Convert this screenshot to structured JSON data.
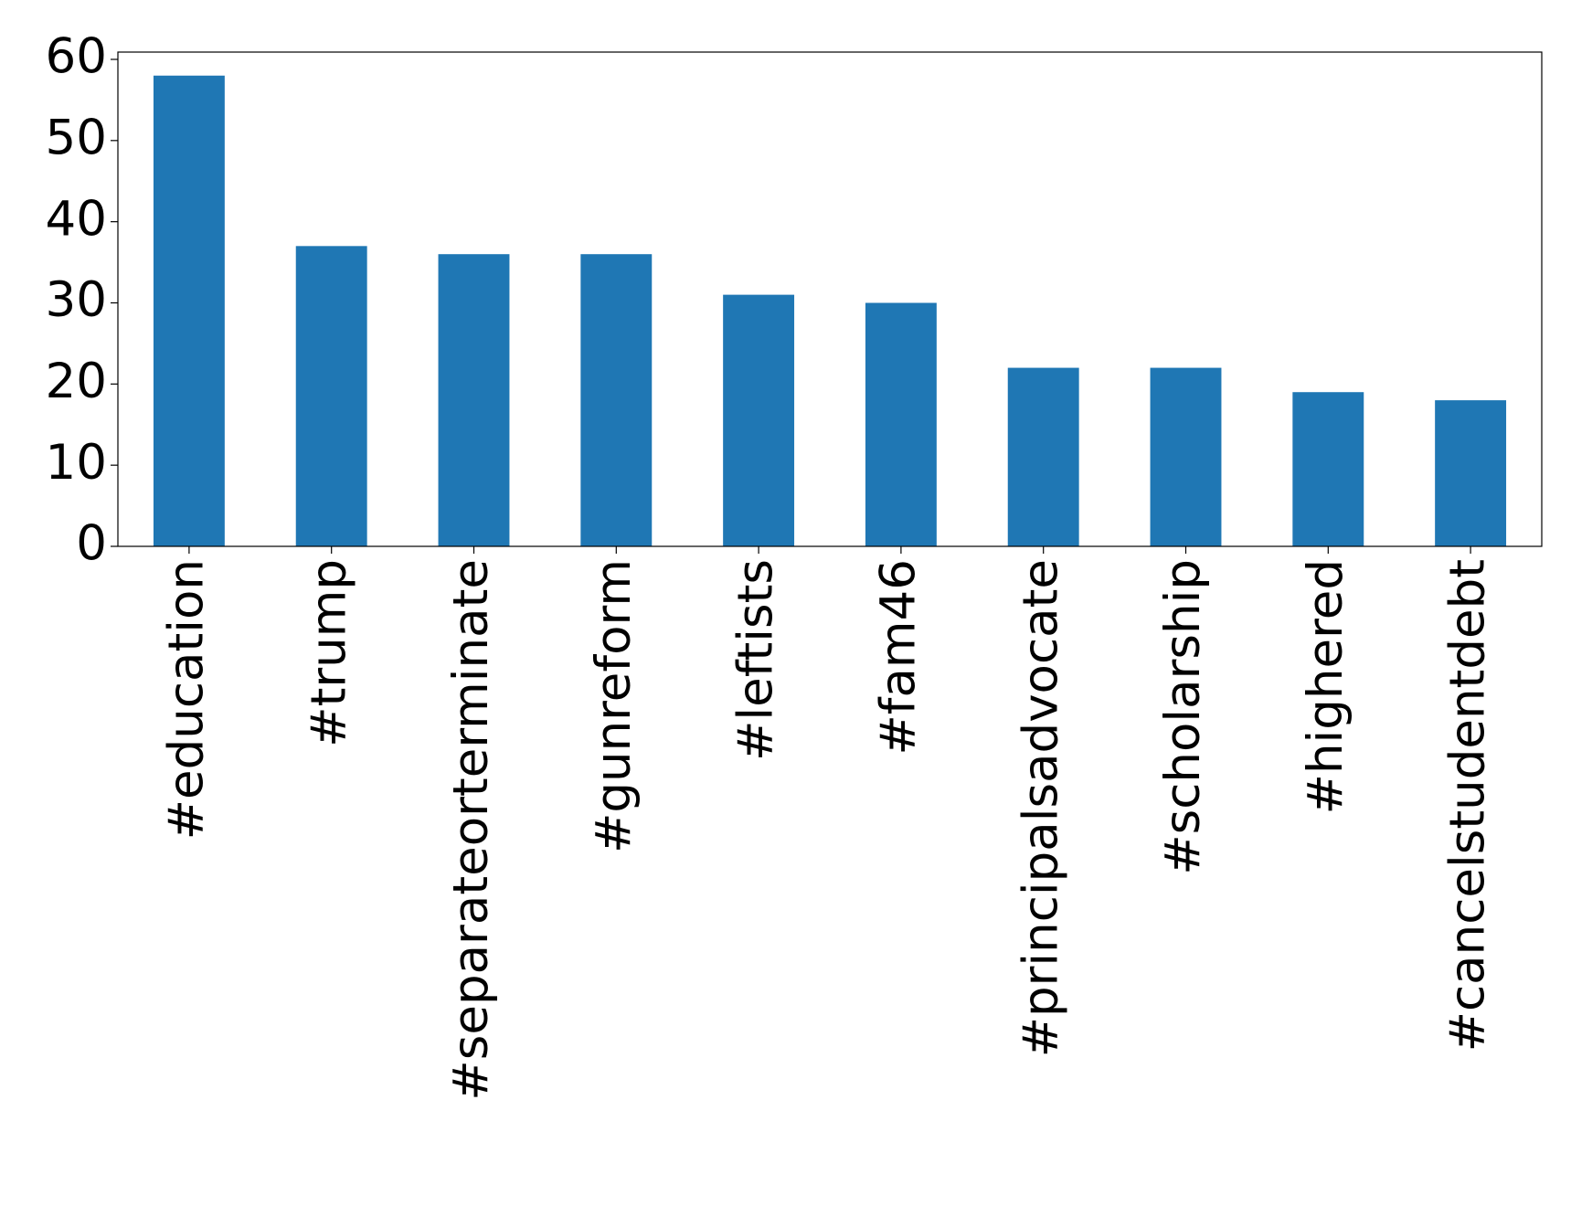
{
  "chart_data": {
    "type": "bar",
    "categories": [
      "#education",
      "#trump",
      "#separateorterminate",
      "#gunreform",
      "#leftists",
      "#fam46",
      "#principalsadvocate",
      "#scholarship",
      "#highered",
      "#cancelstudentdebt"
    ],
    "values": [
      58,
      37,
      36,
      36,
      31,
      30,
      22,
      22,
      19,
      18
    ],
    "color": "#1f77b4",
    "ylim": [
      0,
      60.9
    ],
    "yticks": [
      0,
      10,
      20,
      30,
      40,
      50,
      60
    ],
    "grid": false
  }
}
